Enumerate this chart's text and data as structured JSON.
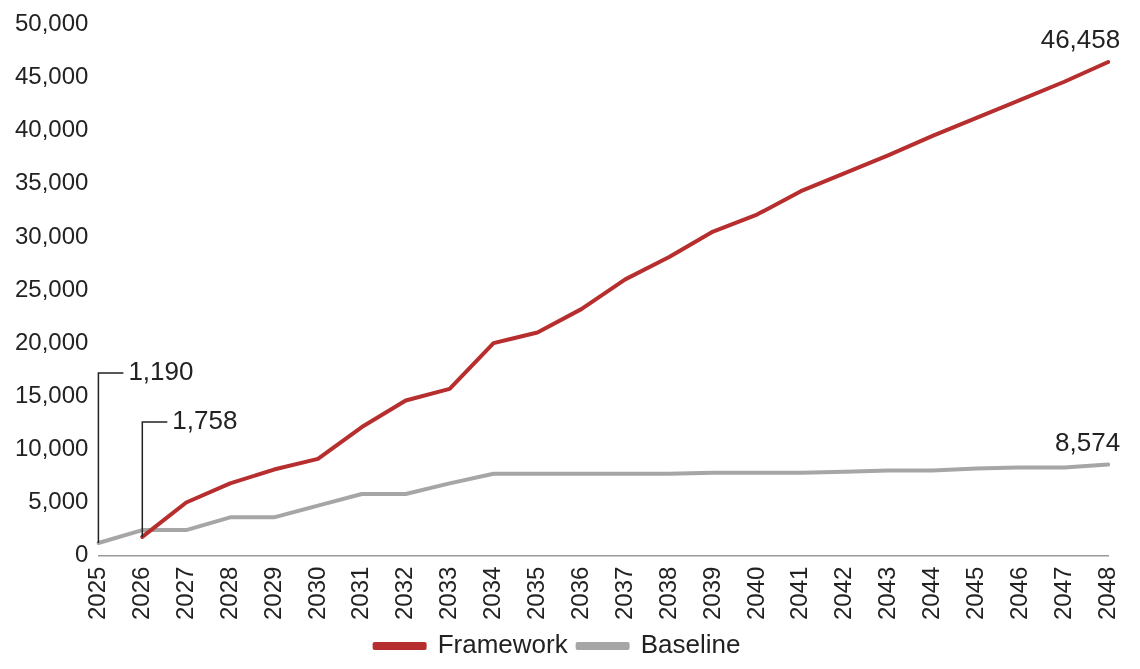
{
  "chart_data": {
    "type": "line",
    "categories": [
      "2025",
      "2026",
      "2027",
      "2028",
      "2029",
      "2030",
      "2031",
      "2032",
      "2033",
      "2034",
      "2035",
      "2036",
      "2037",
      "2038",
      "2039",
      "2040",
      "2041",
      "2042",
      "2043",
      "2044",
      "2045",
      "2046",
      "2047",
      "2048"
    ],
    "series": [
      {
        "name": "Framework",
        "color": "#b72e2e",
        "values": [
          null,
          1758,
          5000,
          6800,
          8100,
          9100,
          12100,
          14600,
          15700,
          20000,
          21000,
          23200,
          26000,
          28100,
          30500,
          32100,
          34300,
          36000,
          37700,
          39500,
          41200,
          42900,
          44600,
          46458
        ],
        "value_labels": [
          null,
          "1,758",
          null,
          null,
          null,
          null,
          null,
          null,
          null,
          null,
          null,
          null,
          null,
          null,
          null,
          null,
          null,
          null,
          null,
          null,
          null,
          null,
          null,
          "46,458"
        ]
      },
      {
        "name": "Baseline",
        "color": "#a6a6a6",
        "values": [
          1190,
          2400,
          2400,
          3600,
          3600,
          4700,
          5800,
          5800,
          6800,
          7700,
          7700,
          7700,
          7700,
          7700,
          7800,
          7800,
          7800,
          7900,
          8000,
          8000,
          8200,
          8300,
          8300,
          8574
        ],
        "value_labels": [
          "1,190",
          null,
          null,
          null,
          null,
          null,
          null,
          null,
          null,
          null,
          null,
          null,
          null,
          null,
          null,
          null,
          null,
          null,
          null,
          null,
          null,
          null,
          null,
          "8,574"
        ]
      }
    ],
    "ylim": [
      0,
      50000
    ],
    "yticks": [
      0,
      {
        "value": 5000,
        "label": "5,000"
      },
      {
        "value": 10000,
        "label": "10,000"
      },
      {
        "value": 15000,
        "label": "15,000"
      },
      {
        "value": 20000,
        "label": "20,000"
      },
      {
        "value": 25000,
        "label": "25,000"
      },
      {
        "value": 30000,
        "label": "30,000"
      },
      {
        "value": 35000,
        "label": "35,000"
      },
      {
        "value": 40000,
        "label": "40,000"
      },
      {
        "value": 45000,
        "label": "45,000"
      },
      {
        "value": 50000,
        "label": "50,000"
      }
    ],
    "grid": false,
    "legend": "bottom",
    "marker": "none",
    "line_style": "solid"
  }
}
